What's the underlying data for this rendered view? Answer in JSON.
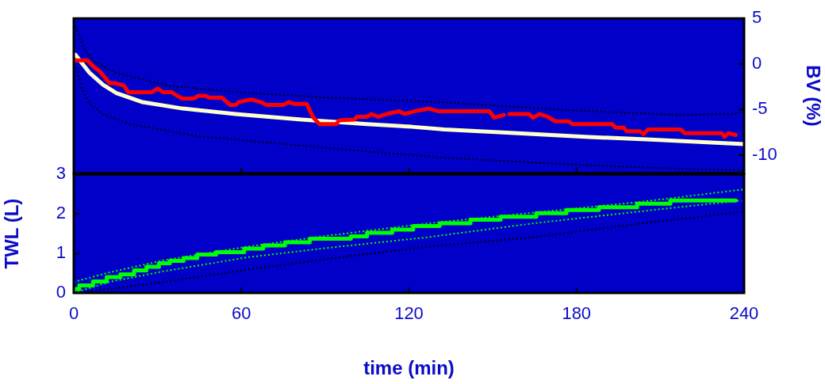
{
  "chart_data": [
    {
      "type": "line",
      "xlim": [
        0,
        240
      ],
      "xticks": [
        0,
        60,
        120,
        180,
        240
      ],
      "ylim": [
        -12,
        5
      ],
      "yticks": [
        -10,
        -5,
        0,
        5
      ],
      "ylabel": "BV (%)",
      "tick_labels": "y",
      "legend": false,
      "marker": "none",
      "series": [
        {
          "color": "#ff0000",
          "line_style": "solid",
          "x": [
            0,
            4.8,
            7.1,
            9.6,
            12.8,
            14.8,
            18,
            19.5,
            28,
            30,
            32,
            35,
            37,
            39,
            43,
            44.6,
            47.4,
            48.3,
            53,
            56,
            58,
            59,
            63.5,
            67,
            69,
            75,
            77,
            79,
            83.4,
            85.8,
            88,
            94,
            95,
            100.5,
            101.4,
            105,
            106.5,
            109,
            112,
            116.5,
            118.5,
            122,
            127,
            130.7,
            148.8,
            150.6,
            154,
            155,
            156,
            163,
            164.4,
            166.8,
            169.6,
            172.4,
            177,
            178.6,
            192.8,
            194,
            196.9,
            198,
            202.7,
            204,
            205.6,
            217.3,
            218.8,
            232,
            233,
            234.4,
            237
          ],
          "values": [
            0.4,
            0.4,
            -0.3,
            -0.9,
            -2.1,
            -2.1,
            -2.4,
            -3.1,
            -3.1,
            -2.7,
            -3.1,
            -3.1,
            -3.5,
            -3.8,
            -3.8,
            -3.5,
            -3.5,
            -3.7,
            -3.7,
            -4.5,
            -4.5,
            -4.2,
            -3.9,
            -4.2,
            -4.5,
            -4.5,
            -4.2,
            -4.4,
            -4.4,
            -5.9,
            -6.6,
            -6.6,
            -6.2,
            -6.1,
            -5.8,
            -5.8,
            -5.5,
            -5.8,
            -5.5,
            -5.2,
            -5.5,
            -5.2,
            -4.9,
            -5.2,
            -5.2,
            -5.9,
            -5.6,
            null,
            -5.5,
            -5.5,
            -5.9,
            -5.5,
            -5.8,
            -6.3,
            -6.3,
            -6.6,
            -6.6,
            -7.0,
            -7.0,
            -7.4,
            -7.4,
            -7.7,
            -7.2,
            -7.2,
            -7.6,
            -7.6,
            -8.0,
            -7.6,
            -7.8
          ]
        },
        {
          "color": "#ffffcc",
          "line_style": "solid",
          "x": [
            0.6,
            5.7,
            10.5,
            15.3,
            24.7,
            39,
            57.9,
            81.5,
            105,
            121,
            132.7,
            159,
            182.9,
            206.5,
            240
          ],
          "values": [
            1.0,
            -1.0,
            -2.3,
            -3.2,
            -4.2,
            -4.9,
            -5.5,
            -6.1,
            -6.6,
            -6.9,
            -7.2,
            -7.6,
            -8.0,
            -8.3,
            -8.8
          ]
        },
        {
          "color": "#000000",
          "line_style": "dotted",
          "x": [
            0.6,
            3.9,
            7.7,
            15.3,
            34,
            62.5,
            91,
            132.7,
            178,
            216,
            235.8,
            240
          ],
          "values": [
            4.1,
            1.6,
            0.2,
            -1.0,
            -2.4,
            -3.2,
            -3.7,
            -4.2,
            -5.1,
            -5.6,
            -5.5,
            -5.2
          ]
        },
        {
          "color": "#000000",
          "line_style": "dotted",
          "x": [
            1,
            2.9,
            5.7,
            10.5,
            20,
            43.7,
            72,
            100.5,
            132.7,
            168.6,
            206.5,
            240
          ],
          "values": [
            -0.4,
            -2.7,
            -4.4,
            -5.5,
            -6.6,
            -7.9,
            -8.7,
            -9.5,
            -10.3,
            -10.9,
            -11.4,
            -11.7
          ]
        }
      ]
    },
    {
      "type": "line",
      "xlim": [
        0,
        240
      ],
      "xticks": [
        0,
        60,
        120,
        180,
        240
      ],
      "ylim": [
        0,
        3
      ],
      "yticks": [
        0,
        1,
        2,
        3
      ],
      "xlabel": "time (min)",
      "ylabel": "TWL (L)",
      "legend": false,
      "marker": "none",
      "series": [
        {
          "type": "step",
          "color": "#00ff00",
          "line_style": "solid",
          "x": [
            0,
            2,
            6.9,
            11.8,
            16.7,
            21.6,
            26,
            30.5,
            34.4,
            39.3,
            44.2,
            51,
            61,
            67.8,
            75.6,
            84.5,
            99.2,
            105,
            114,
            121.5,
            131,
            142,
            152.8,
            165.6,
            176.4,
            188,
            201.7,
            213.6,
            226.3,
            237
          ],
          "values": [
            0.03,
            0.1,
            0.19,
            0.29,
            0.4,
            0.47,
            0.57,
            0.66,
            0.75,
            0.81,
            0.88,
            0.97,
            1.03,
            1.12,
            1.2,
            1.28,
            1.37,
            1.43,
            1.52,
            1.6,
            1.69,
            1.76,
            1.85,
            1.93,
            2.02,
            2.1,
            2.17,
            2.26,
            2.34,
            2.34
          ]
        },
        {
          "color": "#00ff00",
          "line_style": "dotted",
          "x": [
            0,
            12.8,
            32.4,
            62,
            91,
            126.7,
            164.5,
            203.7,
            240
          ],
          "values": [
            0.28,
            0.52,
            0.83,
            1.17,
            1.45,
            1.76,
            2.03,
            2.31,
            2.62
          ]
        },
        {
          "color": "#00ff00",
          "line_style": "dotted",
          "x": [
            0,
            12.8,
            32.4,
            62,
            91,
            126.7,
            164.5,
            203.7,
            239
          ],
          "values": [
            0,
            0.28,
            0.55,
            0.9,
            1.14,
            1.41,
            1.76,
            2.07,
            2.34
          ]
        },
        {
          "color": "#000000",
          "line_style": "dotted",
          "x": [
            2,
            32.4,
            62,
            91,
            126.7,
            164.5,
            203.7,
            240
          ],
          "values": [
            0,
            0.28,
            0.59,
            0.86,
            1.17,
            1.41,
            1.76,
            2.06
          ]
        }
      ]
    }
  ]
}
